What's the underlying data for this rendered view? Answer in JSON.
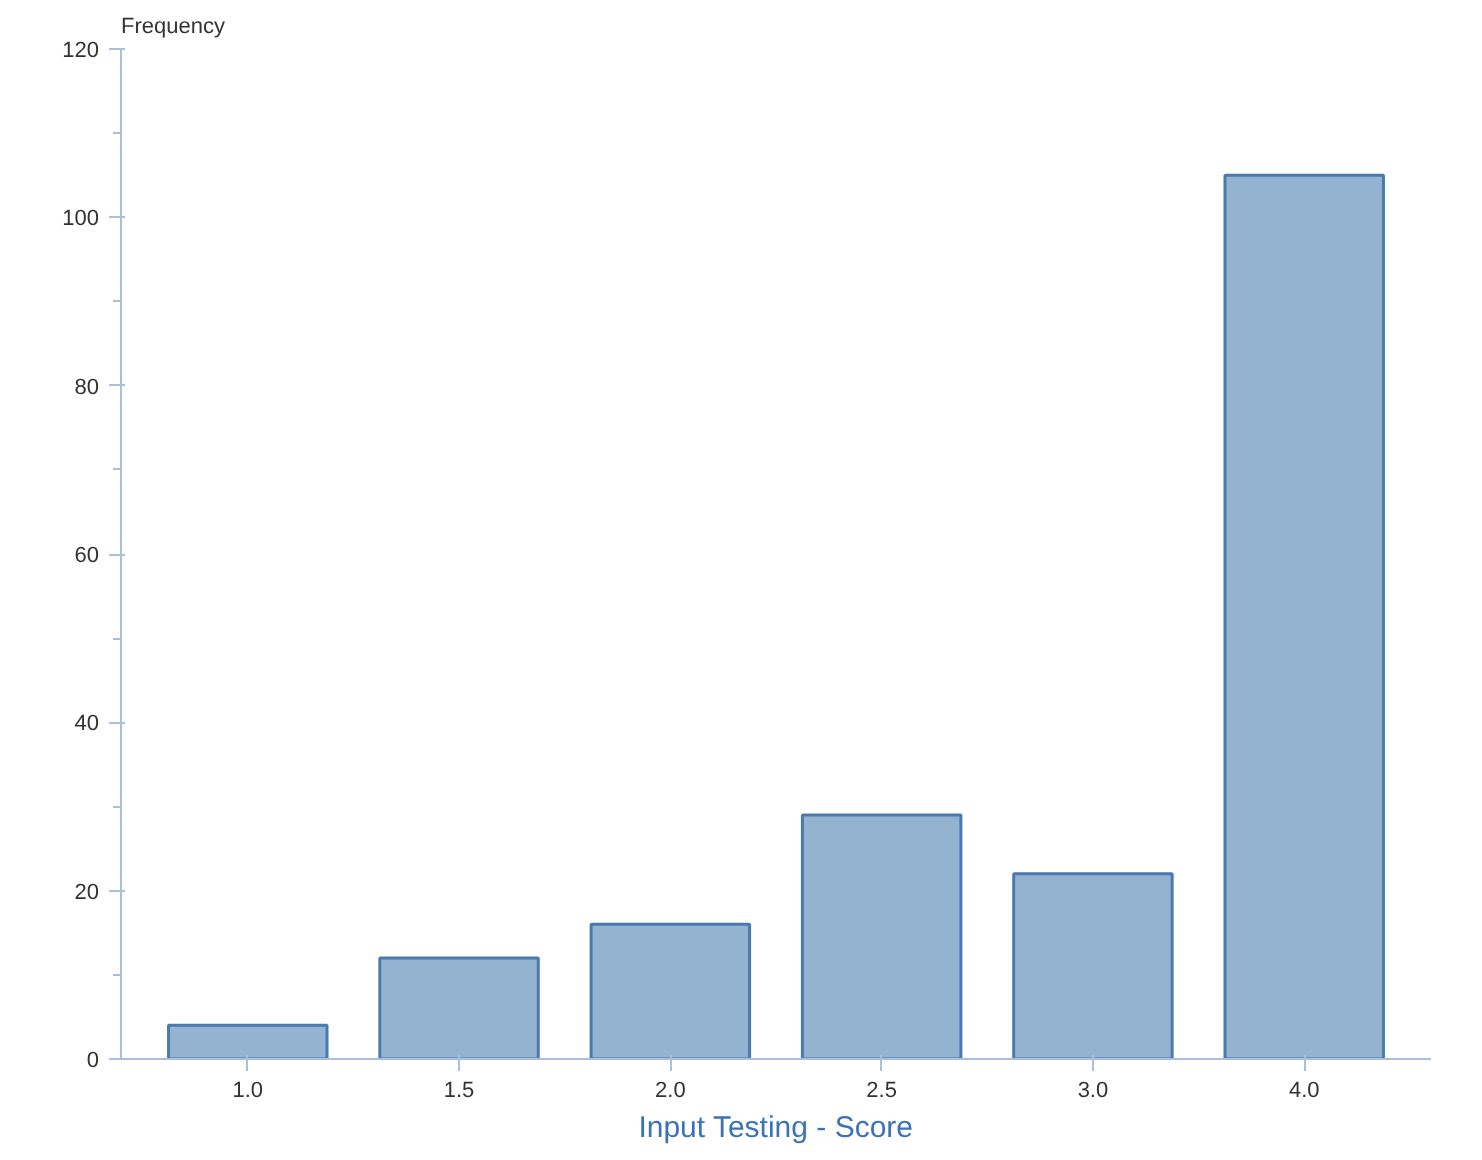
{
  "chart_data": {
    "type": "bar",
    "xlabel": "Input Testing - Score",
    "ylabel": "Frequency",
    "categories": [
      "1.0",
      "1.5",
      "2.0",
      "2.5",
      "3.0",
      "4.0"
    ],
    "values": [
      4,
      12,
      16,
      29,
      22,
      105
    ],
    "color": "#94b3d1",
    "ylim": [
      0,
      120
    ],
    "yticks": [
      0,
      20,
      40,
      60,
      80,
      100,
      120
    ],
    "grid": false
  }
}
